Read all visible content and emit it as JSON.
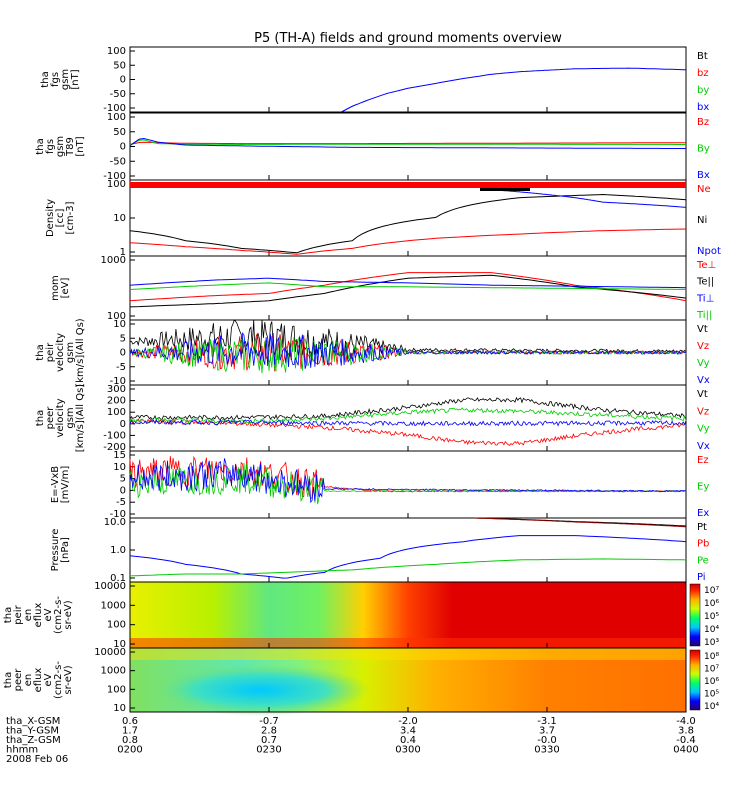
{
  "title": "P5 (TH-A) fields and ground moments overview",
  "footer": {
    "rows": [
      {
        "label": "tha_X-GSM",
        "values": [
          "0.6",
          "-0.7",
          "-2.0",
          "-3.1",
          "-4.0"
        ]
      },
      {
        "label": "tha_Y-GSM",
        "values": [
          "1.7",
          "2.8",
          "3.4",
          "3.7",
          "3.8"
        ]
      },
      {
        "label": "tha_Z-GSM",
        "values": [
          "0.8",
          "0.7",
          "0.4",
          "-0.0",
          "-0.4"
        ]
      },
      {
        "label": "hhmm",
        "values": [
          "0200",
          "0230",
          "0300",
          "0330",
          "0400"
        ]
      }
    ],
    "date": "2008 Feb 06"
  },
  "colors": {
    "black": "#000000",
    "red": "#ff0000",
    "green": "#00cc00",
    "blue": "#0000ff",
    "dark_red": "#8b0000"
  },
  "chart_data": [
    {
      "type": "line",
      "ylabel": [
        "tha",
        "fgs",
        "gsm",
        "[nT]"
      ],
      "yticks": [
        "100",
        "50",
        "0",
        "-50",
        "-100"
      ],
      "ylim": [
        -100,
        100
      ],
      "legend": [
        {
          "text": "Bt",
          "color": "#000000"
        },
        {
          "text": "bz",
          "color": "#ff0000"
        },
        {
          "text": "by",
          "color": "#00cc00"
        },
        {
          "text": "bx",
          "color": "#0000ff"
        }
      ],
      "series": [
        {
          "name": "bx",
          "color": "#0000ff",
          "x": [
            0.38,
            0.4,
            0.43,
            0.46,
            0.5,
            0.55,
            0.6,
            0.65,
            0.7,
            0.8,
            0.9,
            1.0
          ],
          "y": [
            -100,
            -82,
            -62,
            -44,
            -27,
            -12,
            3,
            16,
            24,
            33,
            35,
            30
          ]
        }
      ]
    },
    {
      "type": "line",
      "ylabel": [
        "tha",
        "fgs",
        "gsm",
        "T89",
        "[nT]"
      ],
      "yticks": [
        "100",
        "50",
        "0",
        "-50",
        "-100"
      ],
      "ylim": [
        -120,
        110
      ],
      "legend": [
        {
          "text": "Bz",
          "color": "#ff0000"
        },
        {
          "text": "By",
          "color": "#00cc00"
        },
        {
          "text": "Bx",
          "color": "#0000ff"
        }
      ],
      "series": [
        {
          "name": "Bz",
          "color": "#ff0000",
          "x": [
            0,
            0.02,
            0.05,
            0.1,
            0.2,
            0.4,
            1.0
          ],
          "y": [
            2,
            10,
            8,
            6,
            5,
            5,
            8
          ]
        },
        {
          "name": "By",
          "color": "#00cc00",
          "x": [
            0,
            0.02,
            0.05,
            0.1,
            0.2,
            0.4,
            1.0
          ],
          "y": [
            0,
            20,
            5,
            3,
            2,
            3,
            2
          ]
        },
        {
          "name": "Bx",
          "color": "#0000ff",
          "x": [
            0,
            0.02,
            0.05,
            0.1,
            0.2,
            0.4,
            0.7,
            1.0
          ],
          "y": [
            -2,
            25,
            10,
            0,
            -3,
            -8,
            -10,
            -12
          ]
        }
      ]
    },
    {
      "type": "line",
      "ylabel": [
        "Density",
        "[cc]",
        "[cm-3]"
      ],
      "yticks": [
        "100",
        "10",
        "1"
      ],
      "ylim": [
        0.3,
        300
      ],
      "yscale": "log",
      "legend": [
        {
          "text": "Ne",
          "color": "#ff0000"
        },
        {
          "text": "Ni",
          "color": "#000000"
        },
        {
          "text": "Npot",
          "color": "#0000ff"
        }
      ],
      "series": [
        {
          "name": "Ni",
          "color": "#000000",
          "x": [
            0,
            0.1,
            0.2,
            0.3,
            0.4,
            0.55,
            0.7,
            0.85,
            1.0
          ],
          "y": [
            3,
            1.2,
            0.6,
            0.4,
            1.2,
            10,
            60,
            80,
            50
          ]
        },
        {
          "name": "Ne",
          "color": "#ff0000",
          "x": [
            0,
            0.1,
            0.2,
            0.3,
            0.4,
            0.55,
            0.7,
            0.85,
            1.0
          ],
          "y": [
            1.0,
            0.7,
            0.5,
            0.35,
            0.6,
            1.5,
            2.2,
            3,
            3.5
          ]
        },
        {
          "name": "Npot",
          "color": "#0000ff",
          "x": [
            0.66,
            0.75,
            0.85,
            1.0
          ],
          "y": [
            120,
            80,
            40,
            25
          ]
        }
      ]
    },
    {
      "type": "line",
      "ylabel": [
        "mom",
        "[eV]"
      ],
      "yticks": [
        "1000",
        "100"
      ],
      "ylim": [
        100,
        1000
      ],
      "yscale": "log",
      "legend": [
        {
          "text": "Te⊥",
          "color": "#ff0000"
        },
        {
          "text": "Te||",
          "color": "#000000"
        },
        {
          "text": "Ti⊥",
          "color": "#0000ff"
        },
        {
          "text": "Ti||",
          "color": "#00cc00"
        }
      ],
      "series": [
        {
          "name": "Te⊥",
          "color": "#ff0000",
          "x": [
            0,
            0.15,
            0.25,
            0.35,
            0.5,
            0.65,
            0.8,
            1.0
          ],
          "y": [
            200,
            240,
            260,
            350,
            550,
            550,
            350,
            200
          ]
        },
        {
          "name": "Te||",
          "color": "#000000",
          "x": [
            0,
            0.15,
            0.25,
            0.35,
            0.5,
            0.65,
            0.8,
            1.0
          ],
          "y": [
            160,
            180,
            200,
            260,
            450,
            500,
            330,
            220
          ]
        },
        {
          "name": "Ti⊥",
          "color": "#0000ff",
          "x": [
            0,
            0.15,
            0.25,
            0.35,
            0.5,
            0.65,
            1.0
          ],
          "y": [
            350,
            420,
            450,
            400,
            380,
            350,
            320
          ]
        },
        {
          "name": "Ti||",
          "color": "#00cc00",
          "x": [
            0,
            0.15,
            0.25,
            0.35,
            0.5,
            0.65,
            1.0
          ],
          "y": [
            300,
            350,
            380,
            330,
            330,
            320,
            300
          ]
        }
      ]
    },
    {
      "type": "line",
      "ylabel": [
        "tha",
        "peir",
        "velocity",
        "gsm",
        "[km/s](All Qs)"
      ],
      "yticks": [
        "10",
        "5",
        "0",
        "-5",
        "-10"
      ],
      "ylim": [
        -12,
        12
      ],
      "legend": [
        {
          "text": "Vt",
          "color": "#000000"
        },
        {
          "text": "Vz",
          "color": "#ff0000"
        },
        {
          "text": "Vy",
          "color": "#00cc00"
        },
        {
          "text": "Vx",
          "color": "#0000ff"
        }
      ],
      "series": [
        {
          "name": "Vt",
          "color": "#000000",
          "x": [
            0,
            0.1,
            0.2,
            0.25,
            0.3,
            0.4,
            0.5,
            1.0
          ],
          "y": [
            4,
            5,
            6,
            6,
            5,
            3,
            1,
            0.5
          ]
        },
        {
          "name": "Vz",
          "color": "#ff0000",
          "x": [
            0,
            0.2,
            0.4,
            1.0
          ],
          "y": [
            0,
            0,
            0,
            0
          ]
        },
        {
          "name": "Vy",
          "color": "#00cc00",
          "x": [
            0,
            0.2,
            0.4,
            1.0
          ],
          "y": [
            0,
            -1,
            0,
            0
          ]
        },
        {
          "name": "Vx",
          "color": "#0000ff",
          "x": [
            0,
            0.2,
            0.4,
            1.0
          ],
          "y": [
            0,
            0.5,
            0,
            0
          ]
        }
      ]
    },
    {
      "type": "line",
      "ylabel": [
        "tha",
        "peer",
        "velocity",
        "gsm",
        "[km/s](All Qs)"
      ],
      "yticks": [
        "300",
        "200",
        "100",
        "0",
        "-100",
        "-200"
      ],
      "ylim": [
        -230,
        300
      ],
      "legend": [
        {
          "text": "Vt",
          "color": "#000000"
        },
        {
          "text": "Vz",
          "color": "#ff0000"
        },
        {
          "text": "Vy",
          "color": "#00cc00"
        },
        {
          "text": "Vx",
          "color": "#0000ff"
        }
      ],
      "series": [
        {
          "name": "Vt",
          "color": "#000000",
          "x": [
            0,
            0.2,
            0.35,
            0.5,
            0.6,
            0.7,
            0.85,
            1.0
          ],
          "y": [
            40,
            40,
            50,
            120,
            180,
            180,
            100,
            50
          ]
        },
        {
          "name": "Vz",
          "color": "#ff0000",
          "x": [
            0,
            0.2,
            0.35,
            0.5,
            0.6,
            0.7,
            0.85,
            1.0
          ],
          "y": [
            10,
            -10,
            -40,
            -100,
            -160,
            -170,
            -80,
            -20
          ]
        },
        {
          "name": "Vy",
          "color": "#00cc00",
          "x": [
            0,
            0.2,
            0.35,
            0.5,
            0.6,
            0.7,
            0.85,
            1.0
          ],
          "y": [
            20,
            10,
            30,
            80,
            100,
            90,
            60,
            30
          ]
        },
        {
          "name": "Vx",
          "color": "#0000ff",
          "x": [
            0,
            0.2,
            0.5,
            1.0
          ],
          "y": [
            0,
            0,
            -10,
            -5
          ]
        }
      ]
    },
    {
      "type": "line",
      "ylabel": [
        "E=-VxB",
        "[mV/m]"
      ],
      "yticks": [
        "15",
        "10",
        "5",
        "0",
        "-5",
        "-10"
      ],
      "ylim": [
        -12,
        18
      ],
      "legend": [
        {
          "text": "Ez",
          "color": "#ff0000"
        },
        {
          "text": "Ey",
          "color": "#00cc00"
        },
        {
          "text": "Ex",
          "color": "#0000ff"
        }
      ],
      "series": [
        {
          "name": "Ez",
          "color": "#ff0000",
          "x": [
            0,
            0.1,
            0.2,
            0.28,
            0.35,
            0.45,
            1.0
          ],
          "y": [
            8,
            9,
            10,
            6,
            2,
            0,
            0
          ]
        },
        {
          "name": "Ey",
          "color": "#00cc00",
          "x": [
            0,
            0.1,
            0.2,
            0.28,
            0.35,
            1.0
          ],
          "y": [
            4,
            5,
            6,
            3,
            0,
            0
          ]
        },
        {
          "name": "Ex",
          "color": "#0000ff",
          "x": [
            0,
            0.1,
            0.2,
            0.28,
            0.35,
            1.0
          ],
          "y": [
            6,
            7,
            8,
            4,
            1,
            0
          ]
        }
      ]
    },
    {
      "type": "line",
      "ylabel": [
        "Pressure",
        "[nPa]"
      ],
      "yticks": [
        "10.0",
        "1.0",
        "0.1"
      ],
      "ylim": [
        0.02,
        30
      ],
      "yscale": "log",
      "legend": [
        {
          "text": "Pt",
          "color": "#000000"
        },
        {
          "text": "Pb",
          "color": "#ff0000"
        },
        {
          "text": "Pe",
          "color": "#00cc00"
        },
        {
          "text": "Pi",
          "color": "#0000ff"
        }
      ],
      "series": [
        {
          "name": "Pi",
          "color": "#0000ff",
          "x": [
            0,
            0.1,
            0.2,
            0.28,
            0.35,
            0.45,
            0.6,
            0.7,
            0.8,
            1.0
          ],
          "y": [
            0.4,
            0.15,
            0.05,
            0.03,
            0.06,
            0.3,
            2,
            4,
            4,
            2
          ]
        },
        {
          "name": "Pe",
          "color": "#00cc00",
          "x": [
            0,
            0.1,
            0.2,
            0.28,
            0.4,
            0.55,
            0.7,
            0.85,
            1.0
          ],
          "y": [
            0.04,
            0.05,
            0.05,
            0.06,
            0.08,
            0.15,
            0.25,
            0.28,
            0.25
          ]
        },
        {
          "name": "Pt",
          "color": "#000000",
          "x": [
            0.62,
            0.8,
            1.0
          ],
          "y": [
            30,
            20,
            12
          ]
        },
        {
          "name": "Pb",
          "color": "#8b0000",
          "x": [
            0.62,
            0.8,
            1.0
          ],
          "y": [
            30,
            19,
            11
          ]
        }
      ]
    },
    {
      "type": "heatmap",
      "ylabel": [
        "tha",
        "peir",
        "en",
        "eflux",
        "eV",
        "(cm2-s-",
        "sr-eV)"
      ],
      "yticks": [
        "10000",
        "1000",
        "100",
        "10"
      ],
      "colorbar": [
        "10⁷",
        "10⁶",
        "10⁵",
        "10⁴",
        "10³"
      ]
    },
    {
      "type": "heatmap",
      "ylabel": [
        "tha",
        "peer",
        "en",
        "eflux",
        "eV",
        "(cm2-s-",
        "sr-eV)"
      ],
      "yticks": [
        "10000",
        "1000",
        "100",
        "10"
      ],
      "colorbar": [
        "10⁸",
        "10⁷",
        "10⁶",
        "10⁵",
        "10⁴"
      ]
    }
  ]
}
